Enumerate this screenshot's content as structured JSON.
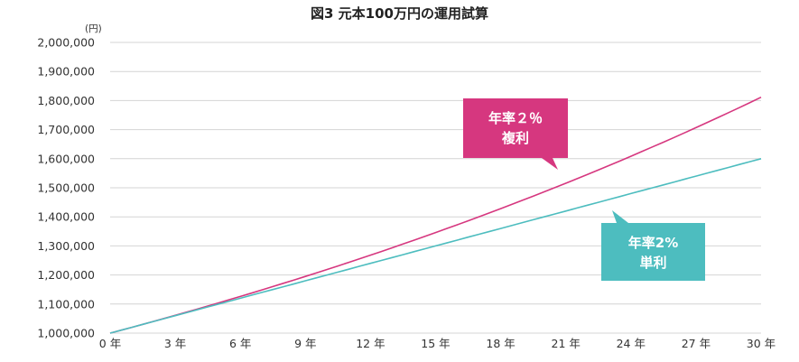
{
  "title": "図3 元本100万円の運用試算",
  "chart_data": {
    "type": "line",
    "title": "図3 元本100万円の運用試算",
    "y_unit": "(円)",
    "ylim": [
      1000000,
      2000000
    ],
    "y_ticks": [
      1000000,
      1100000,
      1200000,
      1300000,
      1400000,
      1500000,
      1600000,
      1700000,
      1800000,
      1900000,
      2000000
    ],
    "y_tick_labels": [
      "1,000,000",
      "1,100,000",
      "1,200,000",
      "1,300,000",
      "1,400,000",
      "1,500,000",
      "1,600,000",
      "1,700,000",
      "1,800,000",
      "1,900,000",
      "2,000,000"
    ],
    "x_ticks": [
      0,
      3,
      6,
      9,
      12,
      15,
      18,
      21,
      24,
      27,
      30
    ],
    "x_tick_labels": [
      "0 年",
      "3 年",
      "6 年",
      "9 年",
      "12 年",
      "15 年",
      "18 年",
      "21 年",
      "24 年",
      "27 年",
      "30 年"
    ],
    "xlim": [
      0,
      30
    ],
    "grid": true,
    "series": [
      {
        "name": "年率2％ 複利",
        "color": "#d6377f",
        "x": [
          0,
          3,
          6,
          9,
          12,
          15,
          18,
          21,
          24,
          27,
          30
        ],
        "values": [
          1000000,
          1061208,
          1126162,
          1195093,
          1268242,
          1345868,
          1428246,
          1515666,
          1608437,
          1706886,
          1811362
        ]
      },
      {
        "name": "年率2% 単利",
        "color": "#4dbdbf",
        "x": [
          0,
          3,
          6,
          9,
          12,
          15,
          18,
          21,
          24,
          27,
          30
        ],
        "values": [
          1000000,
          1060000,
          1120000,
          1180000,
          1240000,
          1300000,
          1360000,
          1420000,
          1480000,
          1540000,
          1600000
        ]
      }
    ],
    "annotations": [
      {
        "lines": [
          "年率２％",
          "複利"
        ],
        "color": "#d6377f",
        "series": 0
      },
      {
        "lines": [
          "年率2%",
          "単利"
        ],
        "color": "#4dbdbf",
        "series": 1
      }
    ]
  }
}
